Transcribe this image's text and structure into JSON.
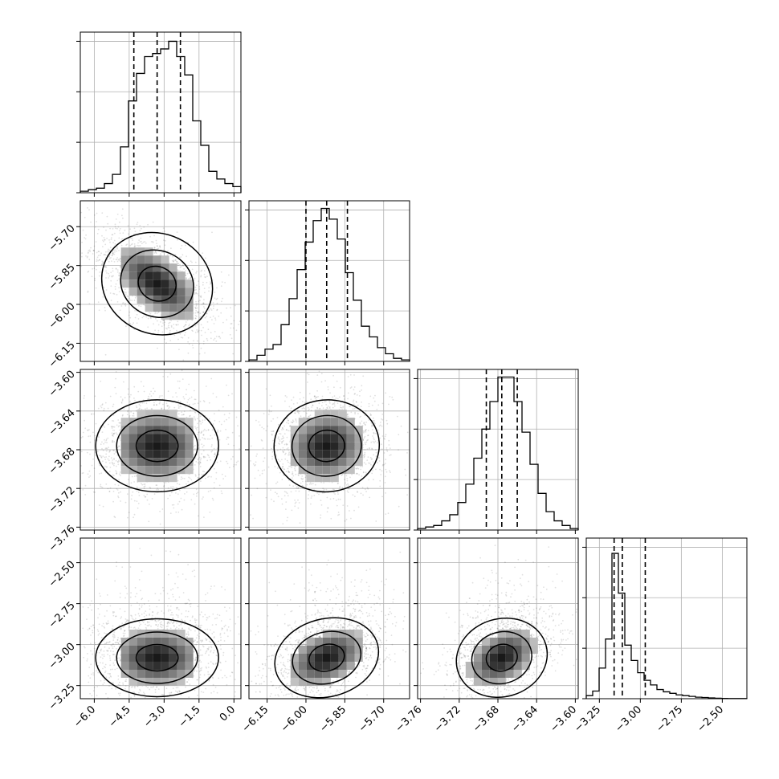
{
  "chart_data": {
    "type": "corner",
    "parameters": [
      {
        "range": [
          -6.6,
          0.3
        ],
        "ticks": [
          -6.0,
          -4.5,
          -3.0,
          -1.5,
          0.0
        ],
        "tick_labels": [
          "−6.0",
          "−4.5",
          "−3.0",
          "−1.5",
          "0.0"
        ],
        "quantiles": [
          -4.3,
          -3.3,
          -2.3
        ],
        "hist_edges_start": -6.6,
        "hist_bin_width": 0.345,
        "hist_counts": [
          1,
          2,
          3,
          6,
          12,
          30,
          60,
          78,
          89,
          91,
          94,
          99,
          89,
          77,
          47,
          31,
          14,
          9,
          6,
          4,
          2,
          1
        ],
        "hist_ymax": 105
      },
      {
        "range": [
          -6.22,
          -5.6
        ],
        "ticks": [
          -6.15,
          -6.0,
          -5.85,
          -5.7
        ],
        "tick_labels": [
          "−6.15",
          "−6.00",
          "−5.85",
          "−5.70"
        ],
        "quantiles": [
          -6.0,
          -5.92,
          -5.84
        ],
        "hist_edges_start": -6.22,
        "hist_bin_width": 0.031,
        "hist_counts": [
          1,
          4,
          8,
          11,
          24,
          41,
          60,
          78,
          92,
          100,
          93,
          80,
          58,
          40,
          23,
          16,
          9,
          5,
          2,
          1
        ],
        "hist_ymax": 105
      },
      {
        "range": [
          -3.763,
          -3.597
        ],
        "ticks": [
          -3.76,
          -3.72,
          -3.68,
          -3.64,
          -3.6
        ],
        "tick_labels": [
          "−3.76",
          "−3.72",
          "−3.68",
          "−3.64",
          "−3.60"
        ],
        "quantiles": [
          -3.692,
          -3.676,
          -3.66
        ],
        "hist_edges_start": -3.763,
        "hist_bin_width": 0.0083,
        "hist_counts": [
          1,
          2,
          3,
          6,
          10,
          18,
          30,
          47,
          66,
          84,
          100,
          100,
          84,
          64,
          43,
          24,
          12,
          6,
          3,
          1
        ],
        "hist_ymax": 105
      },
      {
        "range": [
          -3.33,
          -2.35
        ],
        "ticks": [
          -3.25,
          -3.0,
          -2.75,
          -2.5
        ],
        "tick_labels": [
          "−3.25",
          "−3.00",
          "−2.75",
          "−2.50"
        ],
        "quantiles": [
          -3.16,
          -3.11,
          -2.97
        ],
        "hist_edges_start": -3.33,
        "hist_bin_width": 0.0392,
        "hist_counts": [
          2,
          5,
          20,
          39,
          95,
          69,
          35,
          25,
          17,
          12,
          9,
          6,
          4.5,
          3.5,
          2.5,
          2,
          1.5,
          1,
          0.8,
          0.5,
          0.3,
          0.2,
          0.1,
          0.1,
          0.1
        ],
        "hist_ymax": 105
      }
    ],
    "pairs": [
      {
        "row": 1,
        "col": 0,
        "mean": [
          -3.3,
          -5.92
        ],
        "sd": [
          0.92,
          0.073
        ],
        "rho": -0.6
      },
      {
        "row": 2,
        "col": 0,
        "mean": [
          -3.3,
          -3.676
        ],
        "sd": [
          1.0,
          0.018
        ],
        "rho": 0.0
      },
      {
        "row": 2,
        "col": 1,
        "mean": [
          -5.92,
          -3.676
        ],
        "sd": [
          0.077,
          0.018
        ],
        "rho": 0.1
      },
      {
        "row": 3,
        "col": 0,
        "mean": [
          -3.3,
          -3.08
        ],
        "sd": [
          1.0,
          0.09
        ],
        "rho": 0.0
      },
      {
        "row": 3,
        "col": 1,
        "mean": [
          -5.92,
          -3.08
        ],
        "sd": [
          0.077,
          0.09
        ],
        "rho": 0.4
      },
      {
        "row": 3,
        "col": 2,
        "mean": [
          -3.676,
          -3.08
        ],
        "sd": [
          0.018,
          0.09
        ],
        "rho": 0.4
      }
    ],
    "grid": true
  }
}
